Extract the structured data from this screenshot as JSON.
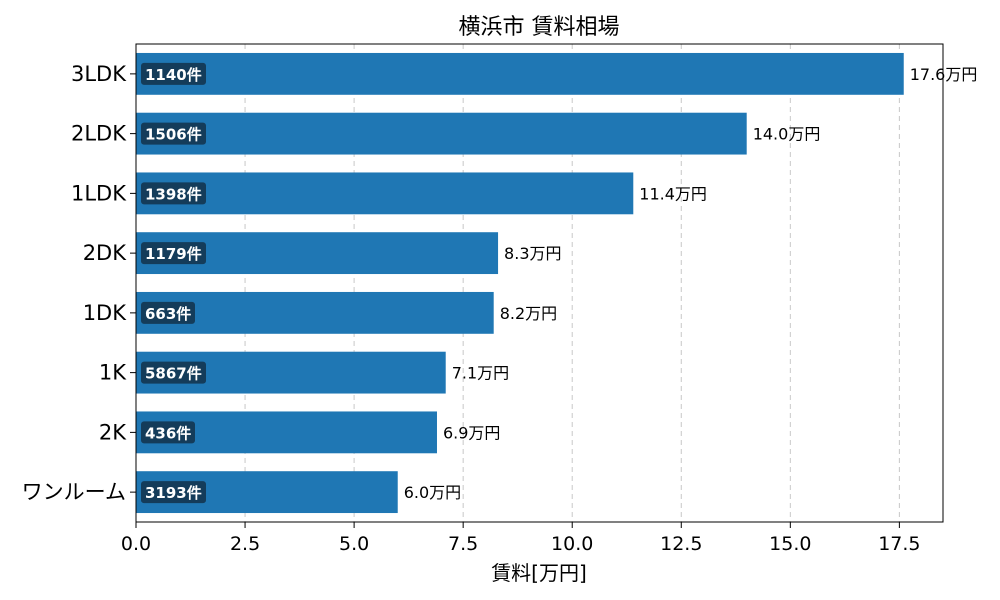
{
  "chart_data": {
    "type": "bar",
    "orientation": "horizontal",
    "title": "横浜市 賃料相場",
    "xlabel": "賃料[万円]",
    "ylabel": "",
    "xlim": [
      0,
      18.5
    ],
    "xticks": [
      "0.0",
      "2.5",
      "5.0",
      "7.5",
      "10.0",
      "12.5",
      "15.0",
      "17.5"
    ],
    "grid": "x-dashed",
    "categories": [
      "3LDK",
      "2LDK",
      "1LDK",
      "2DK",
      "1DK",
      "1K",
      "2K",
      "ワンルーム"
    ],
    "values": [
      17.6,
      14.0,
      11.4,
      8.3,
      8.2,
      7.1,
      6.9,
      6.0
    ],
    "value_labels": [
      "17.6万円",
      "14.0万円",
      "11.4万円",
      "8.3万円",
      "8.2万円",
      "7.1万円",
      "6.9万円",
      "6.0万円"
    ],
    "count_labels": [
      "1140件",
      "1506件",
      "1398件",
      "1179件",
      "663件",
      "5867件",
      "436件",
      "3193件"
    ],
    "bar_color": "#1f77b4",
    "badge_color": "#143c5a"
  }
}
